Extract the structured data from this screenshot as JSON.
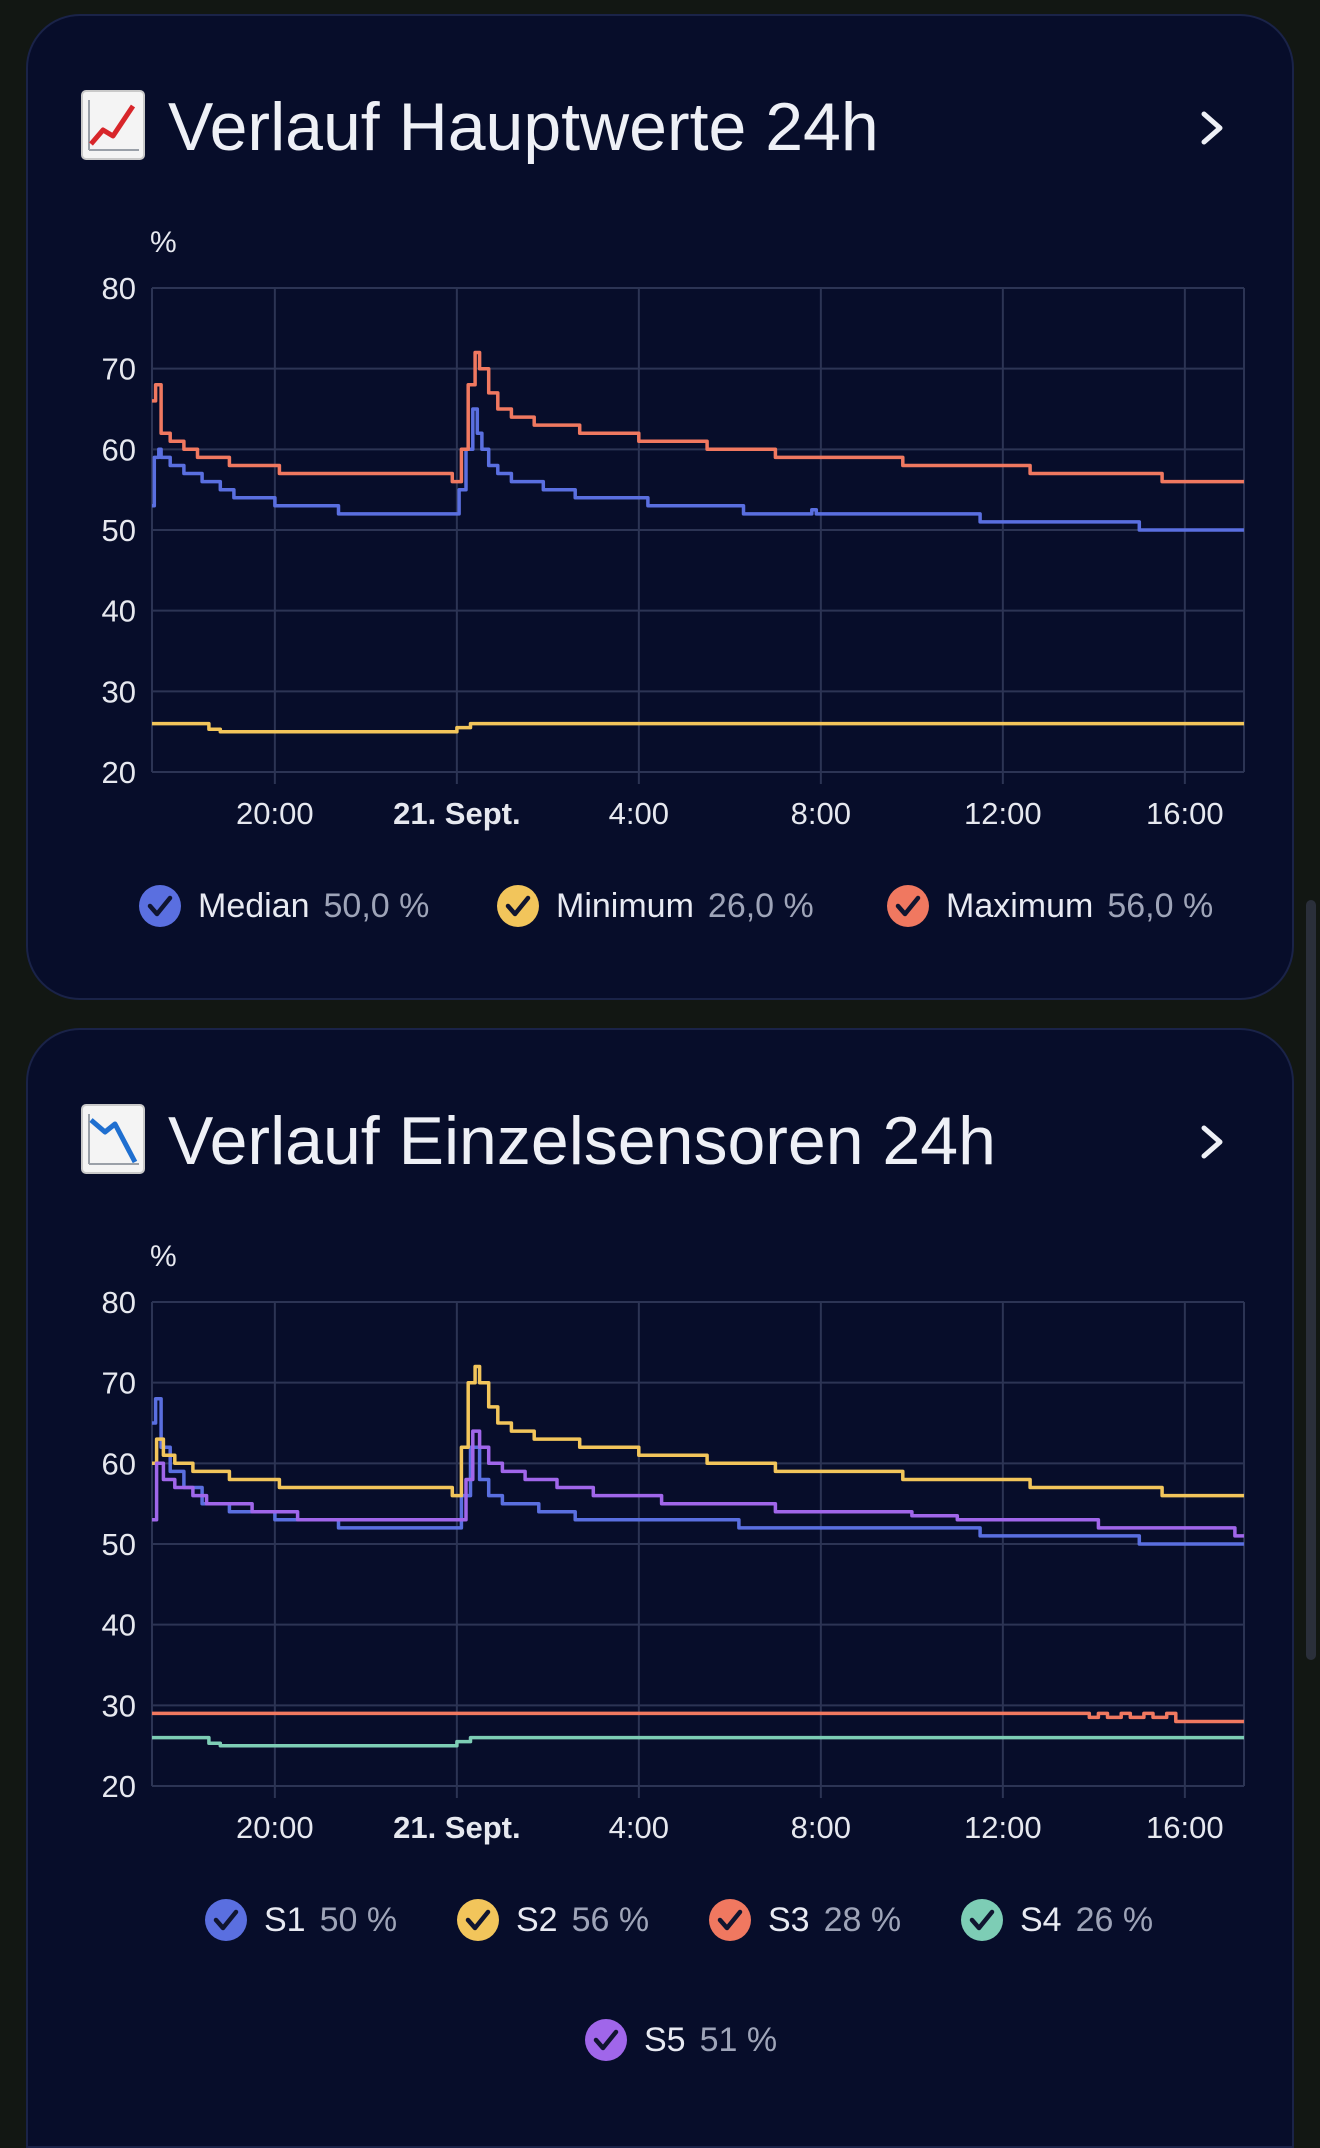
{
  "cards": [
    {
      "title": "Verlauf Hauptwerte 24h",
      "icon": "chart-increasing-emoji-icon",
      "chart_data": {
        "type": "line",
        "yunit": "%",
        "ylim": [
          20,
          80
        ],
        "yticks": [
          20,
          30,
          40,
          50,
          60,
          70,
          80
        ],
        "xlim": [
          -2.7,
          21.3
        ],
        "xticks": [
          {
            "v": 0,
            "label": "20:00"
          },
          {
            "v": 4,
            "label": "21. Sept.",
            "bold": true
          },
          {
            "v": 8,
            "label": "4:00"
          },
          {
            "v": 12,
            "label": "8:00"
          },
          {
            "v": 16,
            "label": "12:00"
          },
          {
            "v": 20,
            "label": "16:00"
          }
        ],
        "grid": true,
        "legend_position": "bottom",
        "series": [
          {
            "name": "Median",
            "color": "#5a6fe0",
            "current": "50,0 %",
            "points": [
              [
                -2.7,
                53
              ],
              [
                -2.65,
                59
              ],
              [
                -2.55,
                60
              ],
              [
                -2.5,
                59
              ],
              [
                -2.3,
                58
              ],
              [
                -2.0,
                57
              ],
              [
                -1.6,
                56
              ],
              [
                -1.2,
                55
              ],
              [
                -0.9,
                54
              ],
              [
                0.0,
                53
              ],
              [
                1.4,
                52
              ],
              [
                4.0,
                52
              ],
              [
                4.05,
                55
              ],
              [
                4.2,
                60
              ],
              [
                4.35,
                65
              ],
              [
                4.45,
                62
              ],
              [
                4.55,
                60
              ],
              [
                4.7,
                58
              ],
              [
                4.9,
                57
              ],
              [
                5.2,
                56
              ],
              [
                5.9,
                55
              ],
              [
                6.6,
                54
              ],
              [
                8.2,
                53
              ],
              [
                10.3,
                52
              ],
              [
                11.8,
                52.5
              ],
              [
                11.9,
                52
              ],
              [
                15.5,
                51
              ],
              [
                19.0,
                50
              ],
              [
                21.3,
                50
              ]
            ]
          },
          {
            "name": "Minimum",
            "color": "#f2c55b",
            "current": "26,0 %",
            "points": [
              [
                -2.7,
                26
              ],
              [
                -1.5,
                26
              ],
              [
                -1.45,
                25.3
              ],
              [
                -1.2,
                25
              ],
              [
                1.0,
                25
              ],
              [
                3.9,
                25
              ],
              [
                4.0,
                25.5
              ],
              [
                4.3,
                26
              ],
              [
                21.3,
                26
              ]
            ]
          },
          {
            "name": "Maximum",
            "color": "#f07860",
            "current": "56,0 %",
            "points": [
              [
                -2.7,
                66
              ],
              [
                -2.62,
                68
              ],
              [
                -2.5,
                62
              ],
              [
                -2.3,
                61
              ],
              [
                -2.0,
                60
              ],
              [
                -1.7,
                59
              ],
              [
                -1.0,
                58
              ],
              [
                0.1,
                57
              ],
              [
                3.7,
                57
              ],
              [
                3.9,
                56
              ],
              [
                4.0,
                56
              ],
              [
                4.1,
                60
              ],
              [
                4.25,
                68
              ],
              [
                4.4,
                72
              ],
              [
                4.5,
                70
              ],
              [
                4.7,
                67
              ],
              [
                4.9,
                65
              ],
              [
                5.2,
                64
              ],
              [
                5.7,
                63
              ],
              [
                6.7,
                62
              ],
              [
                8.0,
                61
              ],
              [
                9.5,
                60
              ],
              [
                11.0,
                59
              ],
              [
                13.8,
                58
              ],
              [
                16.6,
                57
              ],
              [
                19.5,
                56
              ],
              [
                21.3,
                56
              ]
            ]
          }
        ]
      }
    },
    {
      "title": "Verlauf Einzelsensoren 24h",
      "icon": "chart-decreasing-emoji-icon",
      "chart_data": {
        "type": "line",
        "yunit": "%",
        "ylim": [
          20,
          80
        ],
        "yticks": [
          20,
          30,
          40,
          50,
          60,
          70,
          80
        ],
        "xlim": [
          -2.7,
          21.3
        ],
        "xticks": [
          {
            "v": 0,
            "label": "20:00"
          },
          {
            "v": 4,
            "label": "21. Sept.",
            "bold": true
          },
          {
            "v": 8,
            "label": "4:00"
          },
          {
            "v": 12,
            "label": "8:00"
          },
          {
            "v": 16,
            "label": "12:00"
          },
          {
            "v": 20,
            "label": "16:00"
          }
        ],
        "grid": true,
        "legend_position": "bottom",
        "series": [
          {
            "name": "S1",
            "color": "#5a6fe0",
            "current": "50 %",
            "points": [
              [
                -2.7,
                65
              ],
              [
                -2.62,
                68
              ],
              [
                -2.5,
                62
              ],
              [
                -2.3,
                59
              ],
              [
                -2.0,
                57
              ],
              [
                -1.6,
                55
              ],
              [
                -1.0,
                54
              ],
              [
                0.0,
                53
              ],
              [
                1.4,
                52
              ],
              [
                4.0,
                52
              ],
              [
                4.1,
                56
              ],
              [
                4.3,
                62
              ],
              [
                4.5,
                58
              ],
              [
                4.7,
                56
              ],
              [
                5.0,
                55
              ],
              [
                5.8,
                54
              ],
              [
                6.6,
                53
              ],
              [
                8.5,
                53
              ],
              [
                10.2,
                52
              ],
              [
                14.0,
                52
              ],
              [
                15.5,
                51
              ],
              [
                19.0,
                50
              ],
              [
                21.3,
                50
              ]
            ]
          },
          {
            "name": "S2",
            "color": "#f2c55b",
            "current": "56 %",
            "points": [
              [
                -2.7,
                60
              ],
              [
                -2.6,
                63
              ],
              [
                -2.45,
                61
              ],
              [
                -2.2,
                60
              ],
              [
                -1.8,
                59
              ],
              [
                -1.0,
                58
              ],
              [
                0.1,
                57
              ],
              [
                3.7,
                57
              ],
              [
                3.9,
                56
              ],
              [
                4.0,
                56
              ],
              [
                4.1,
                62
              ],
              [
                4.25,
                70
              ],
              [
                4.4,
                72
              ],
              [
                4.5,
                70
              ],
              [
                4.7,
                67
              ],
              [
                4.9,
                65
              ],
              [
                5.2,
                64
              ],
              [
                5.7,
                63
              ],
              [
                6.7,
                62
              ],
              [
                8.0,
                61
              ],
              [
                9.5,
                60
              ],
              [
                11.0,
                59
              ],
              [
                13.8,
                58
              ],
              [
                16.6,
                57
              ],
              [
                19.5,
                56
              ],
              [
                21.3,
                56
              ]
            ]
          },
          {
            "name": "S3",
            "color": "#f07860",
            "current": "28 %",
            "points": [
              [
                -2.7,
                29
              ],
              [
                17.8,
                29
              ],
              [
                17.9,
                28.5
              ],
              [
                18.1,
                29
              ],
              [
                18.3,
                28.5
              ],
              [
                18.6,
                29
              ],
              [
                18.8,
                28.5
              ],
              [
                19.1,
                29
              ],
              [
                19.3,
                28.5
              ],
              [
                19.6,
                29
              ],
              [
                19.8,
                28
              ],
              [
                21.3,
                28
              ]
            ]
          },
          {
            "name": "S4",
            "color": "#7dcdb5",
            "current": "26 %",
            "points": [
              [
                -2.7,
                26
              ],
              [
                -1.5,
                26
              ],
              [
                -1.45,
                25.3
              ],
              [
                -1.2,
                25
              ],
              [
                1.0,
                25
              ],
              [
                3.9,
                25
              ],
              [
                4.0,
                25.5
              ],
              [
                4.3,
                26
              ],
              [
                21.3,
                26
              ]
            ]
          },
          {
            "name": "S5",
            "color": "#a066ea",
            "current": "51 %",
            "points": [
              [
                -2.7,
                53
              ],
              [
                -2.6,
                60
              ],
              [
                -2.45,
                58
              ],
              [
                -2.2,
                57
              ],
              [
                -1.8,
                56
              ],
              [
                -1.5,
                55
              ],
              [
                -0.5,
                54
              ],
              [
                0.5,
                53
              ],
              [
                3.0,
                53
              ],
              [
                4.1,
                53
              ],
              [
                4.2,
                58
              ],
              [
                4.35,
                64
              ],
              [
                4.5,
                62
              ],
              [
                4.7,
                60
              ],
              [
                5.0,
                59
              ],
              [
                5.5,
                58
              ],
              [
                6.2,
                57
              ],
              [
                7.0,
                56
              ],
              [
                8.5,
                55
              ],
              [
                11.0,
                54
              ],
              [
                13.8,
                54
              ],
              [
                14.0,
                53.5
              ],
              [
                15.0,
                53
              ],
              [
                18.0,
                53
              ],
              [
                18.1,
                52
              ],
              [
                21.0,
                52
              ],
              [
                21.1,
                51
              ],
              [
                21.3,
                51
              ]
            ]
          }
        ]
      }
    }
  ]
}
